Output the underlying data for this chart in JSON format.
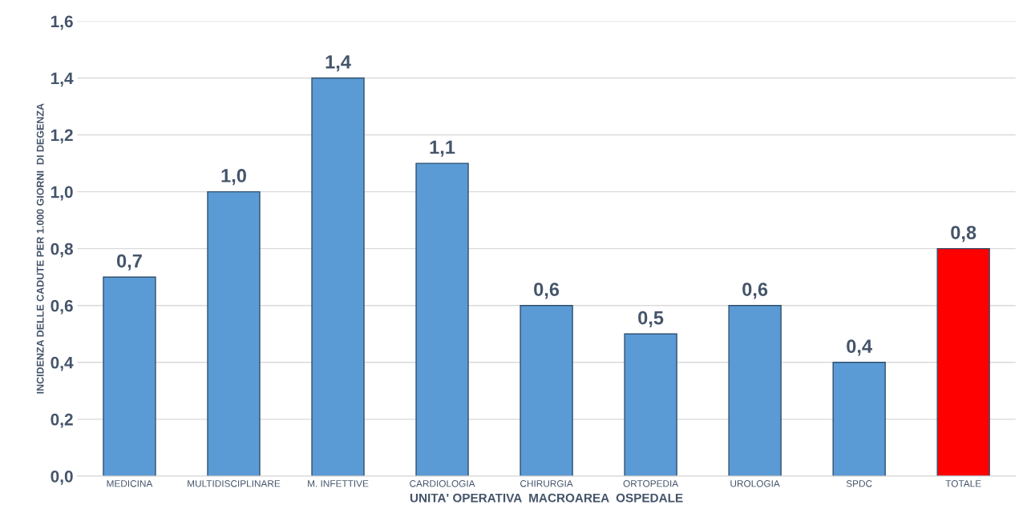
{
  "chart_data": {
    "type": "bar",
    "xlabel": "UNITA' OPERATIVA  MACROAREA  OSPEDALE",
    "ylabel": "INCIDENZA DELLE CADUTE PER 1.000 GIORNI  DI DEGENZA",
    "categories": [
      "MEDICINA",
      "MULTIDISCIPLINARE",
      "M. INFETTIVE",
      "CARDIOLOGIA",
      "CHIRURGIA",
      "ORTOPEDIA",
      "UROLOGIA",
      "SPDC",
      "TOTALE"
    ],
    "values": [
      0.7,
      1.0,
      1.4,
      1.1,
      0.6,
      0.5,
      0.6,
      0.4,
      0.8
    ],
    "value_labels": [
      "0,7",
      "1,0",
      "1,4",
      "1,1",
      "0,6",
      "0,5",
      "0,6",
      "0,4",
      "0,8"
    ],
    "colors": [
      "#5b9bd5",
      "#5b9bd5",
      "#5b9bd5",
      "#5b9bd5",
      "#5b9bd5",
      "#5b9bd5",
      "#5b9bd5",
      "#5b9bd5",
      "#ff0000"
    ],
    "ylim": [
      0,
      1.6
    ],
    "yticks": [
      {
        "value": 0,
        "label": "0,0"
      },
      {
        "value": 0.2,
        "label": "0,2"
      },
      {
        "value": 0.4,
        "label": "0,4"
      },
      {
        "value": 0.6,
        "label": "0,6"
      },
      {
        "value": 0.8,
        "label": "0,8"
      },
      {
        "value": 1.0,
        "label": "1,0"
      },
      {
        "value": 1.2,
        "label": "1,2"
      },
      {
        "value": 1.4,
        "label": "1,4"
      },
      {
        "value": 1.6,
        "label": "1,6"
      }
    ],
    "grid": "y",
    "legend": false
  }
}
